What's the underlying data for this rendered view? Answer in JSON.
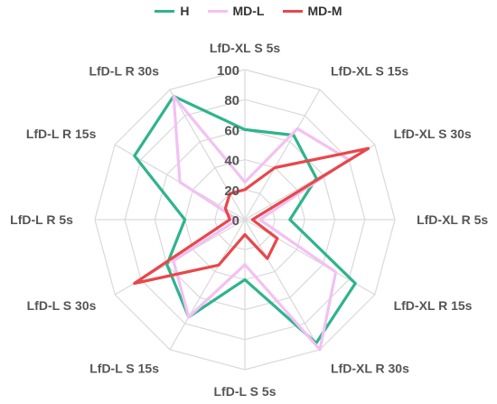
{
  "chart_data": {
    "type": "radar",
    "legend_position": "top",
    "categories": [
      "LfD-XL S 5s",
      "LfD-XL S 15s",
      "LfD-XL S 30s",
      "LfD-XL R 5s",
      "LfD-XL R 15s",
      "LfD-XL R 30s",
      "LfD-L S 5s",
      "LfD-L S 15s",
      "LfD-L S 30s",
      "LfD-L R 5s",
      "LfD-L R 15s",
      "LfD-L R 30s"
    ],
    "rmax": 100,
    "ticks": [
      0,
      20,
      40,
      60,
      80,
      100
    ],
    "grid": true,
    "series": [
      {
        "name": "H",
        "color": "#2eb48c",
        "values": [
          60,
          65,
          55,
          30,
          85,
          95,
          40,
          75,
          60,
          40,
          85,
          95
        ]
      },
      {
        "name": "MD-L",
        "color": "#f2c1f2",
        "values": [
          25,
          70,
          80,
          10,
          70,
          100,
          30,
          75,
          55,
          5,
          50,
          95
        ]
      },
      {
        "name": "MD-M",
        "color": "#e8474b",
        "values": [
          20,
          40,
          95,
          5,
          25,
          30,
          10,
          35,
          85,
          10,
          15,
          20
        ]
      }
    ]
  }
}
